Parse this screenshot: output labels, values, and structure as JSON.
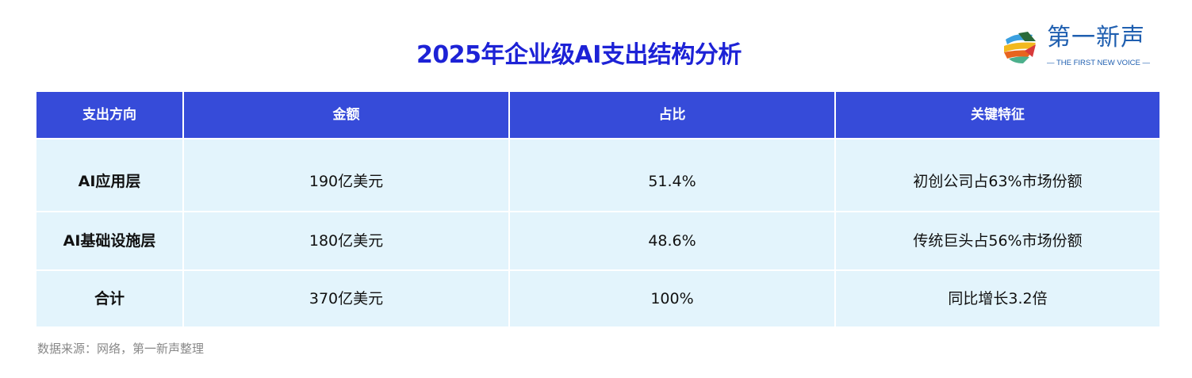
{
  "title": "2025年企业级AI支出结构分析",
  "logo": {
    "cn": "第一新声",
    "en": "— THE FIRST NEW VOICE —"
  },
  "table": {
    "headers": [
      "支出方向",
      "金额",
      "占比",
      "关键特征"
    ],
    "rows": [
      [
        "AI应用层",
        "190亿美元",
        "51.4%",
        "初创公司占63%市场份额"
      ],
      [
        "AI基础设施层",
        "180亿美元",
        "48.6%",
        "传统巨头占56%市场份额"
      ],
      [
        "合计",
        "370亿美元",
        "100%",
        "同比增长3.2倍"
      ]
    ]
  },
  "footnote": "数据来源：网络，第一新声整理",
  "colors": {
    "title": "#1d22d6",
    "header_bg": "#364bd9",
    "row_bg": "#e3f4fc"
  }
}
